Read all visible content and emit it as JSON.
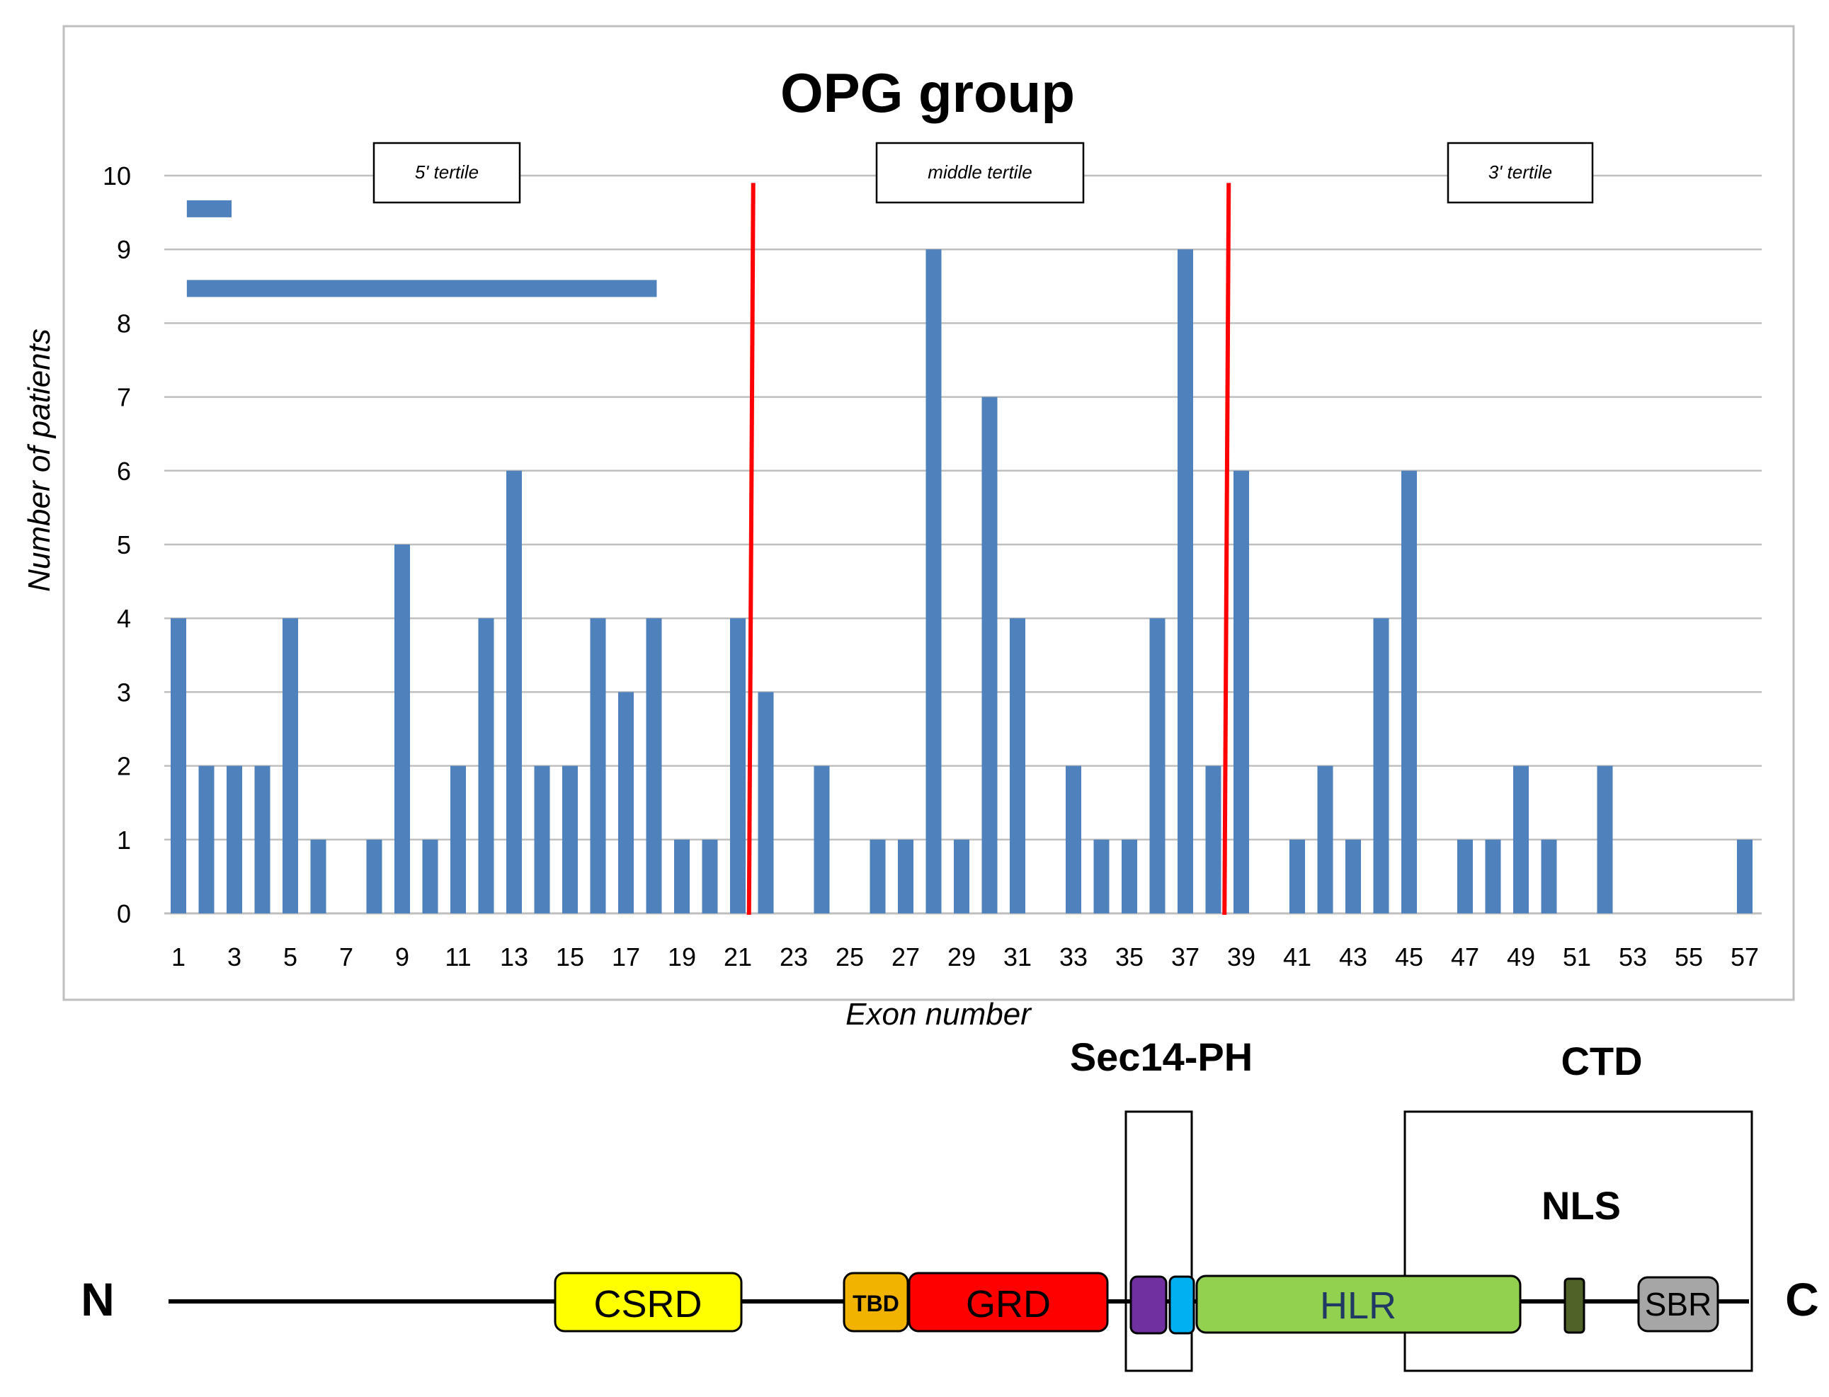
{
  "chart_data": {
    "type": "bar",
    "title": "OPG group",
    "xlabel": "Exon number",
    "ylabel": "Number of patients",
    "ylim": [
      0,
      10
    ],
    "yticks": [
      0,
      1,
      2,
      3,
      4,
      5,
      6,
      7,
      8,
      9,
      10
    ],
    "xticks": [
      "1",
      "3",
      "5",
      "7",
      "9",
      "11",
      "13",
      "15",
      "17",
      "19",
      "21",
      "23",
      "25",
      "27",
      "29",
      "31",
      "33",
      "35",
      "37",
      "39",
      "41",
      "43",
      "45",
      "47",
      "49",
      "51",
      "53",
      "55",
      "57"
    ],
    "grid": true,
    "categories": [
      1,
      2,
      3,
      4,
      5,
      6,
      7,
      8,
      9,
      10,
      11,
      12,
      13,
      14,
      15,
      16,
      17,
      18,
      19,
      20,
      21,
      22,
      23,
      24,
      25,
      26,
      27,
      28,
      29,
      30,
      31,
      32,
      33,
      34,
      35,
      36,
      37,
      38,
      39,
      40,
      41,
      42,
      43,
      44,
      45,
      46,
      47,
      48,
      49,
      50,
      51,
      52,
      53,
      54,
      55,
      56,
      57
    ],
    "values": [
      4,
      2,
      2,
      2,
      4,
      1,
      0,
      1,
      5,
      1,
      2,
      4,
      6,
      2,
      2,
      4,
      3,
      4,
      1,
      1,
      4,
      3,
      0,
      2,
      0,
      1,
      1,
      9,
      1,
      7,
      4,
      0,
      2,
      1,
      1,
      4,
      9,
      2,
      6,
      0,
      1,
      2,
      1,
      4,
      6,
      0,
      1,
      1,
      2,
      1,
      0,
      2,
      0,
      0,
      0,
      0,
      1
    ],
    "bar_color": "#4f81bd",
    "tertile_labels": [
      "5' tertile",
      "middle tertile",
      "3' tertile"
    ],
    "tertile_boundaries": [
      21.5,
      38.5
    ],
    "boundary_color": "#ff0000",
    "range_bars": [
      {
        "from": 1.3,
        "to": 2.9,
        "y": 9.55
      },
      {
        "from": 1.3,
        "to": 18.1,
        "y": 8.47
      }
    ]
  },
  "domain_map": {
    "n_label": "N",
    "c_label": "C",
    "group_labels": {
      "sec14_ph": "Sec14-PH",
      "ctd": "CTD",
      "nls": "NLS"
    },
    "domains": [
      {
        "name": "CSRD",
        "color": "#ffff00",
        "text_color": "#000000"
      },
      {
        "name": "TBD",
        "color": "#f2b300",
        "text_color": "#000000"
      },
      {
        "name": "GRD",
        "color": "#ff0000",
        "text_color": "#000000"
      },
      {
        "name": "",
        "color": "#7030a0",
        "text_color": "#000000"
      },
      {
        "name": "",
        "color": "#00b0f0",
        "text_color": "#000000"
      },
      {
        "name": "HLR",
        "color": "#92d050",
        "text_color": "#1f3864"
      },
      {
        "name": "",
        "color": "#4f6228",
        "text_color": "#000000"
      },
      {
        "name": "SBR",
        "color": "#a6a6a6",
        "text_color": "#000000"
      }
    ]
  }
}
